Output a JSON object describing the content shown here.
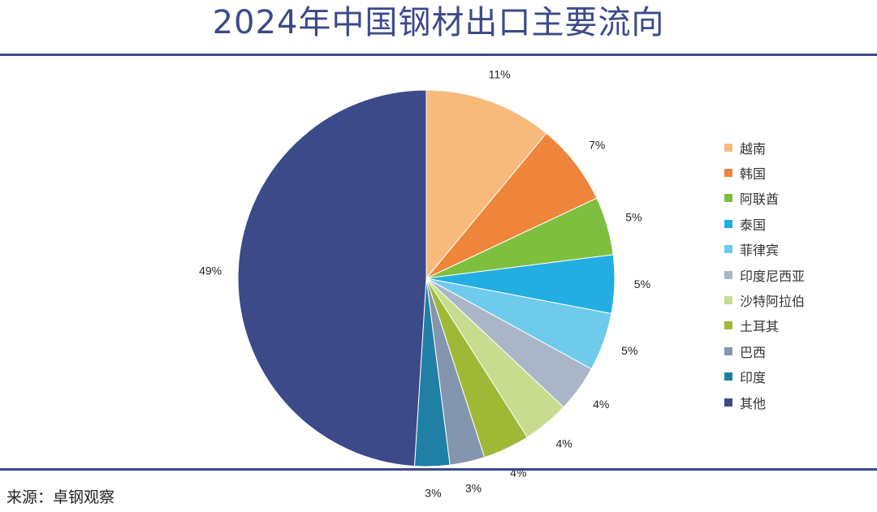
{
  "title": "2024年中国钢材出口主要流向",
  "source": "来源：卓钢观察",
  "chart_data": {
    "type": "pie",
    "categories": [
      "越南",
      "韩国",
      "阿联酋",
      "泰国",
      "菲律宾",
      "印度尼西亚",
      "沙特阿拉伯",
      "土耳其",
      "巴西",
      "印度",
      "其他"
    ],
    "values": [
      11,
      7,
      5,
      5,
      5,
      4,
      4,
      4,
      3,
      3,
      49
    ],
    "labels": [
      "11%",
      "7%",
      "5%",
      "5%",
      "5%",
      "4%",
      "4%",
      "4%",
      "3%",
      "3%",
      "49%"
    ],
    "colors": [
      "#f8ba7b",
      "#ee853b",
      "#7fbf3f",
      "#22aee3",
      "#6ecbeb",
      "#aab6c8",
      "#c7dc8e",
      "#9fb936",
      "#8396ae",
      "#1f7fa5",
      "#3c4a8a"
    ],
    "start": "12 o'clock, clockwise",
    "legend_position": "right"
  }
}
